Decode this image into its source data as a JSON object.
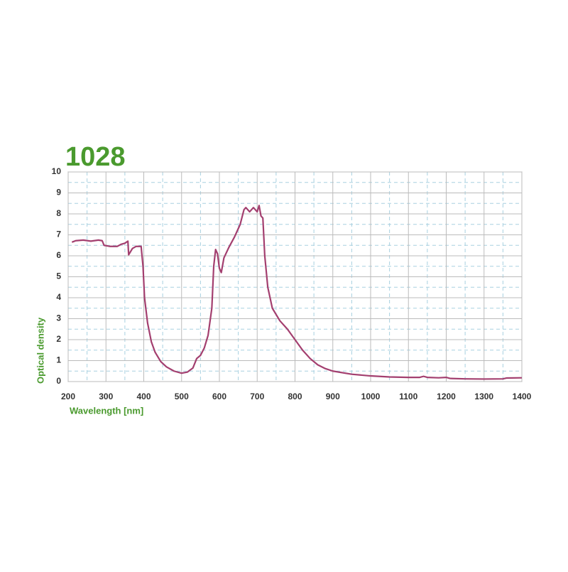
{
  "chart_data": {
    "type": "line",
    "title": "1028",
    "x_label": "Wavelength [nm]",
    "y_label": "Optical density",
    "xlim": [
      200,
      1400
    ],
    "xticks": [
      200,
      300,
      400,
      500,
      600,
      700,
      800,
      900,
      1000,
      1100,
      1200,
      1300,
      1400
    ],
    "ylim": [
      0,
      10
    ],
    "yticks": [
      0,
      1,
      2,
      3,
      4,
      5,
      6,
      7,
      8,
      9,
      10
    ],
    "grid": true,
    "series": [
      {
        "color": "#a33f6f",
        "x": [
          210,
          220,
          240,
          260,
          280,
          290,
          295,
          310,
          330,
          340,
          350,
          358,
          360,
          370,
          380,
          393,
          398,
          402,
          410,
          420,
          430,
          445,
          460,
          480,
          500,
          515,
          530,
          540,
          550,
          560,
          570,
          580,
          585,
          590,
          595,
          600,
          605,
          612,
          625,
          640,
          655,
          665,
          670,
          680,
          690,
          700,
          705,
          710,
          715,
          720,
          728,
          740,
          760,
          780,
          800,
          820,
          840,
          860,
          880,
          900,
          950,
          1000,
          1050,
          1100,
          1130,
          1140,
          1150,
          1180,
          1200,
          1210,
          1250,
          1300,
          1350,
          1360,
          1400
        ],
        "values": [
          6.65,
          6.72,
          6.75,
          6.7,
          6.75,
          6.72,
          6.5,
          6.45,
          6.45,
          6.55,
          6.6,
          6.7,
          6.05,
          6.35,
          6.45,
          6.45,
          5.5,
          4.0,
          2.8,
          1.9,
          1.4,
          0.95,
          0.7,
          0.5,
          0.4,
          0.45,
          0.65,
          1.1,
          1.25,
          1.6,
          2.2,
          3.5,
          5.5,
          6.3,
          6.1,
          5.4,
          5.2,
          5.9,
          6.4,
          6.9,
          7.5,
          8.2,
          8.3,
          8.1,
          8.3,
          8.1,
          8.4,
          7.9,
          7.8,
          6.0,
          4.5,
          3.5,
          2.9,
          2.5,
          2.0,
          1.5,
          1.1,
          0.8,
          0.62,
          0.5,
          0.35,
          0.27,
          0.22,
          0.2,
          0.2,
          0.25,
          0.2,
          0.18,
          0.2,
          0.15,
          0.13,
          0.12,
          0.13,
          0.17,
          0.18
        ]
      }
    ]
  }
}
